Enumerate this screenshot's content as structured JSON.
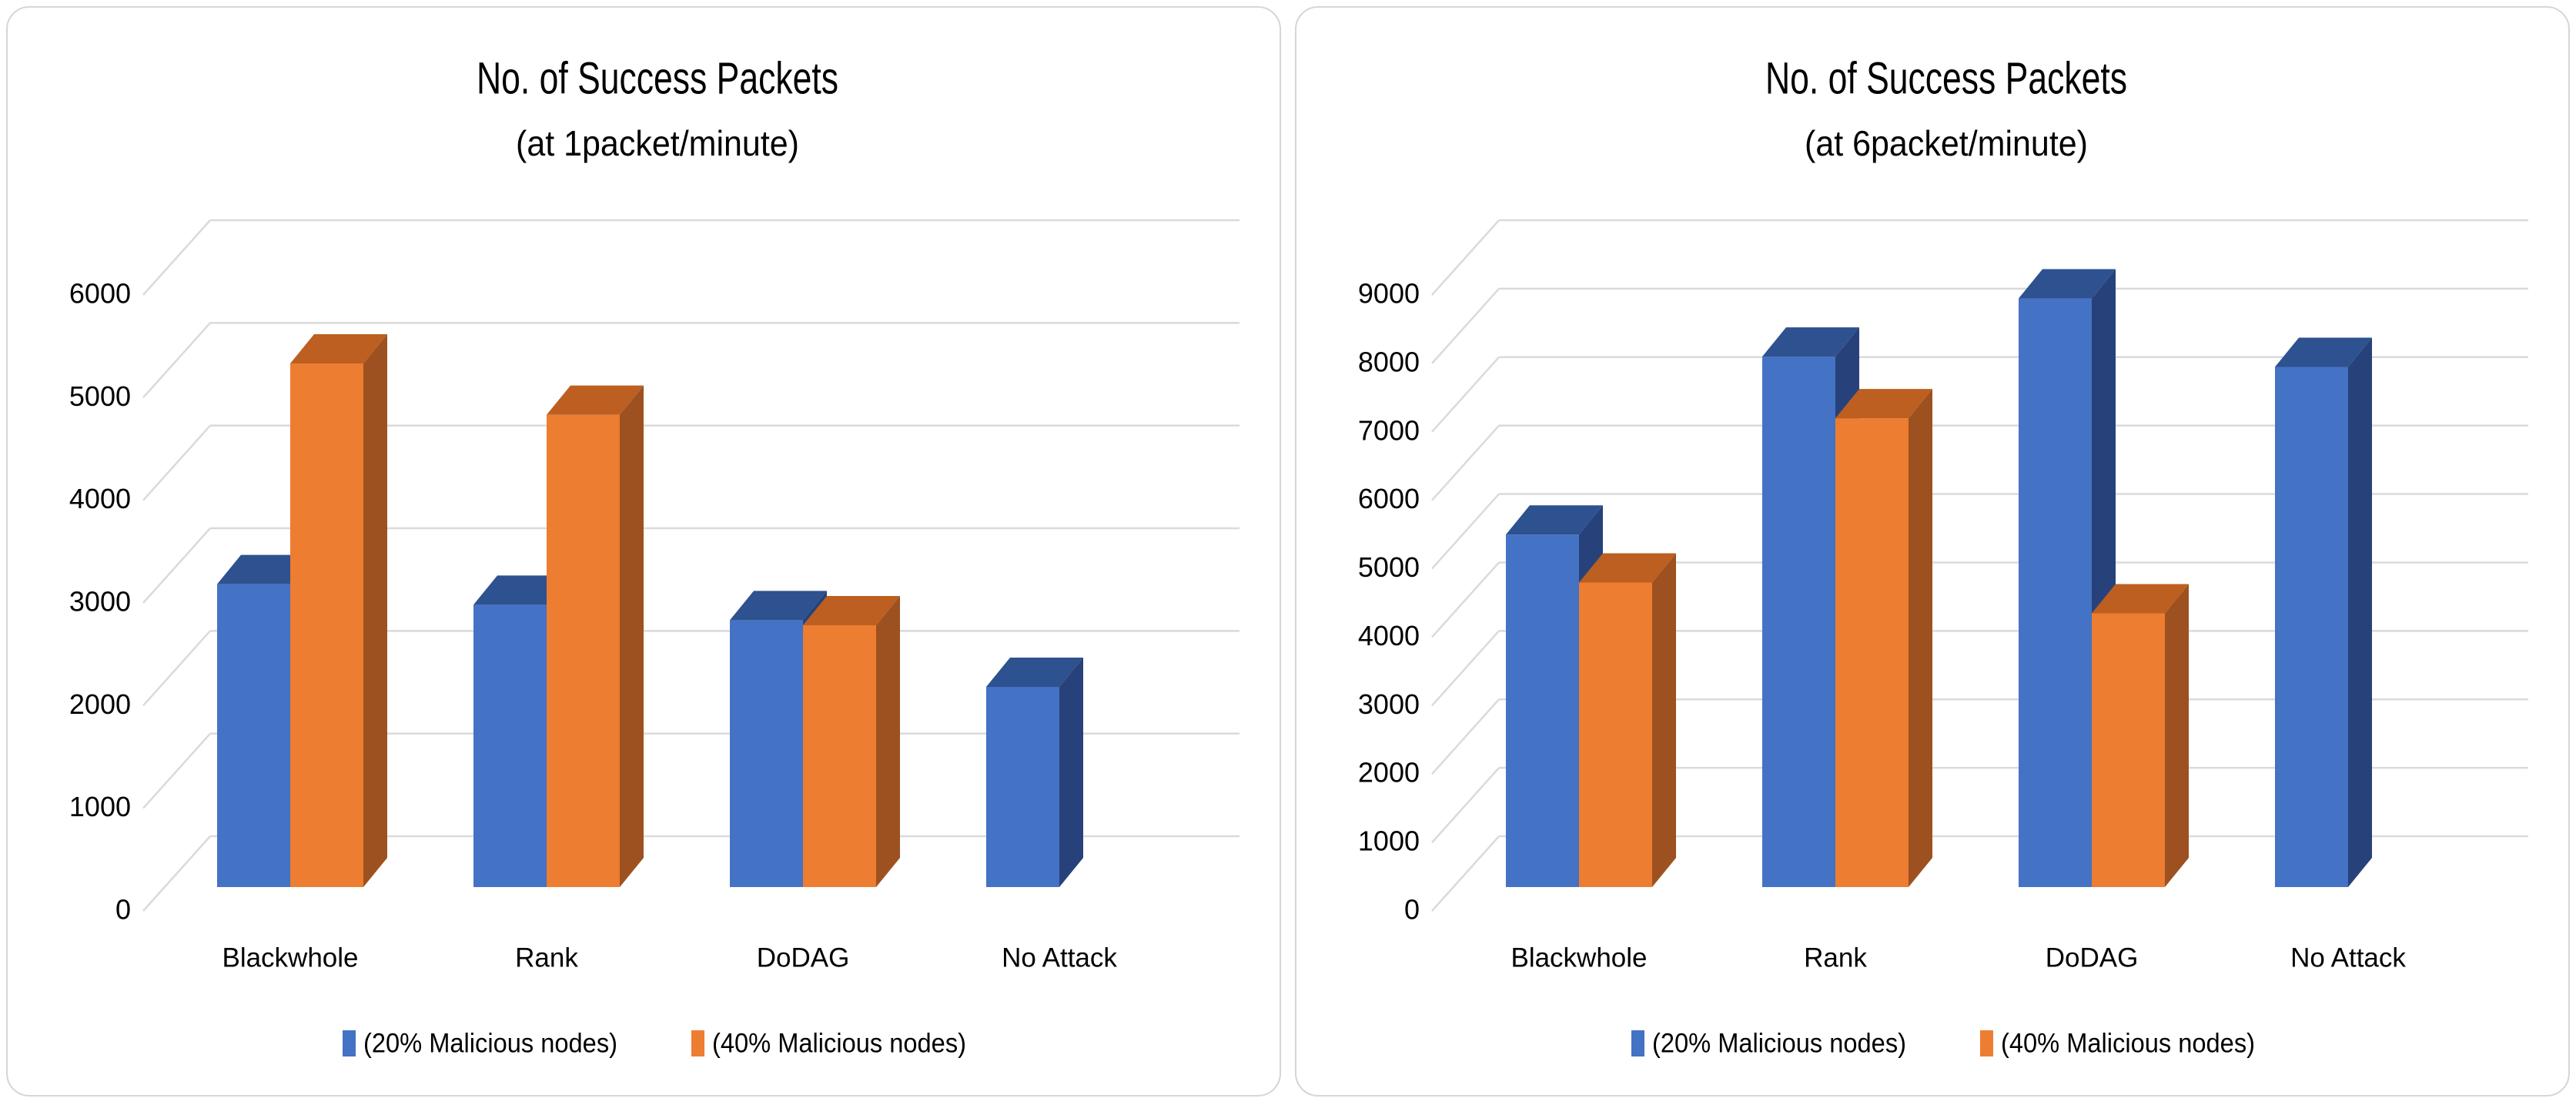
{
  "theme": {
    "page_background": "#FFFFFF",
    "panel_background": "#FFFFFF",
    "panel_border_color": "#D6D6D6",
    "gridline_color": "#DADADA",
    "text_color": "#000000",
    "series_blue": "#4472C4",
    "series_orange": "#ED7D31"
  },
  "chart_data": [
    {
      "type": "bar",
      "style": "3d-clustered-column",
      "title": "No. of Success Packets",
      "subtitle": "(at 1packet/minute)",
      "categories": [
        "Blackwhole",
        "Rank",
        "DoDAG",
        "No Attack"
      ],
      "series": [
        {
          "name": "(20% Malicious nodes)",
          "color": "#4472C4",
          "color_top": "#2E518F",
          "color_side": "#27427A",
          "values": [
            2950,
            2750,
            2600,
            1950
          ]
        },
        {
          "name": "(40% Malicious nodes)",
          "color": "#ED7D31",
          "color_top": "#BC5F21",
          "color_side": "#9E5120",
          "values": [
            5100,
            4600,
            2550,
            null
          ]
        }
      ],
      "y_axis": {
        "min": 0,
        "max": 6000,
        "step": 1000,
        "tick_labels": [
          "0",
          "1000",
          "2000",
          "3000",
          "4000",
          "5000",
          "6000"
        ]
      },
      "ylim": [
        0,
        6000
      ],
      "gridlines": true,
      "legend": {
        "position": "bottom",
        "entries": [
          "(20% Malicious nodes)",
          "(40% Malicious nodes)"
        ]
      }
    },
    {
      "type": "bar",
      "style": "3d-clustered-column",
      "title": "No. of Success Packets",
      "subtitle": "(at 6packet/minute)",
      "categories": [
        "Blackwhole",
        "Rank",
        "DoDAG",
        "No Attack"
      ],
      "series": [
        {
          "name": "(20% Malicious nodes)",
          "color": "#4472C4",
          "color_top": "#2E518F",
          "color_side": "#27427A",
          "values": [
            5150,
            7750,
            8600,
            7600
          ]
        },
        {
          "name": "(40% Malicious nodes)",
          "color": "#ED7D31",
          "color_top": "#BC5F21",
          "color_side": "#9E5120",
          "values": [
            4450,
            6850,
            4000,
            null
          ]
        }
      ],
      "y_axis": {
        "min": 0,
        "max": 9000,
        "step": 1000,
        "tick_labels": [
          "0",
          "1000",
          "2000",
          "3000",
          "4000",
          "5000",
          "6000",
          "7000",
          "8000",
          "9000"
        ]
      },
      "ylim": [
        0,
        9000
      ],
      "gridlines": true,
      "legend": {
        "position": "bottom",
        "entries": [
          "(20% Malicious nodes)",
          "(40% Malicious nodes)"
        ]
      }
    }
  ]
}
